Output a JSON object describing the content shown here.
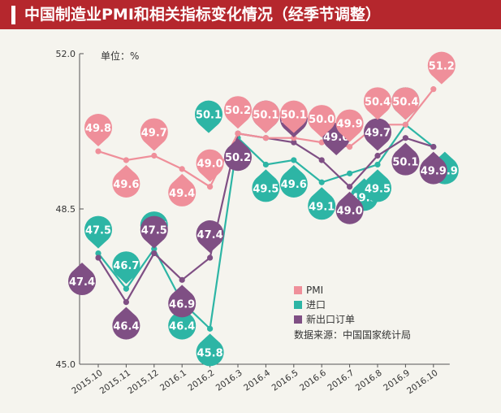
{
  "title": "中国制造业PMI和相关指标变化情况（经季节调整）",
  "unit_label": "单位：%",
  "source": "数据来源：中国国家统计局",
  "colors": {
    "header": "#b5272d",
    "pmi": "#ef8f9a",
    "import": "#2db5a5",
    "export": "#7f4f84"
  },
  "chart_data": {
    "type": "line",
    "categories": [
      "2015.10",
      "2015.11",
      "2015.12",
      "2016.1",
      "2016.2",
      "2016.3",
      "2016.4",
      "2016.5",
      "2016.6",
      "2016.7",
      "2016.8",
      "2016.9",
      "2016.10"
    ],
    "ylim": [
      45.0,
      52.0
    ],
    "yticks": [
      "52.0",
      "48.5",
      "45.0"
    ],
    "legend_position": "bottom-right",
    "series": [
      {
        "name": "PMI",
        "color": "#ef8f9a",
        "values": [
          49.8,
          49.6,
          49.7,
          49.4,
          49.0,
          50.2,
          50.1,
          50.1,
          50.0,
          49.9,
          50.4,
          50.4,
          51.2
        ],
        "labels": [
          "49.8",
          "49.6",
          "49.7",
          "49.4",
          "49.0",
          "50.2",
          "50.1",
          "50.1",
          "50.0",
          "49.9",
          "50.4",
          "50.4",
          "51.2"
        ]
      },
      {
        "name": "进口",
        "color": "#2db5a5",
        "values": [
          47.5,
          46.7,
          47.6,
          46.4,
          45.8,
          50.1,
          49.5,
          49.6,
          49.1,
          49.3,
          49.5,
          50.4,
          49.9
        ],
        "labels": [
          "47.5",
          "46.7",
          "47.6",
          "46.4",
          "45.8",
          "50.1",
          "49.5",
          "49.6",
          "49.1",
          "49.3",
          "49.5",
          "50.4",
          "49.9"
        ]
      },
      {
        "name": "新出口订单",
        "color": "#7f4f84",
        "values": [
          47.4,
          46.4,
          47.5,
          46.9,
          47.4,
          50.2,
          50.1,
          50.0,
          49.6,
          49.0,
          49.7,
          50.1,
          49.9
        ],
        "labels": [
          "47.4",
          "46.4",
          "47.5",
          "46.9",
          "47.4",
          "50.2",
          "50.1",
          "50.0",
          "49.6",
          "49.0",
          "49.7",
          "50.1",
          "49.9"
        ]
      }
    ]
  }
}
